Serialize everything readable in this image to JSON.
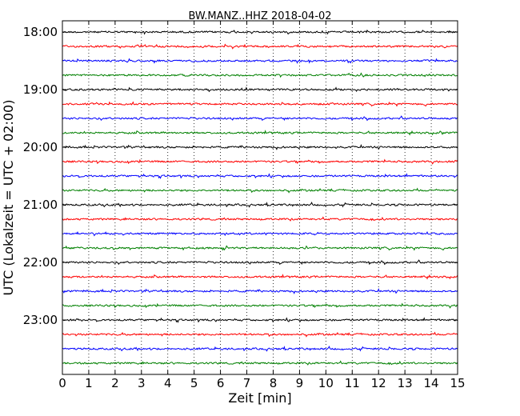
{
  "chart_data": {
    "type": "line",
    "title": "BW.MANZ..HHZ 2018-04-02",
    "xlabel": "Zeit  [min]",
    "ylabel": "UTC (Lokalzeit = UTC + 02:00)",
    "xlim": [
      0,
      15
    ],
    "x_ticks": [
      "0",
      "1",
      "2",
      "3",
      "4",
      "5",
      "6",
      "7",
      "8",
      "9",
      "10",
      "11",
      "12",
      "13",
      "14",
      "15"
    ],
    "y_ticks": [
      "18:00",
      "19:00",
      "20:00",
      "21:00",
      "22:00",
      "23:00"
    ],
    "grid": "vertical dotted",
    "trace_start_time": "18:00",
    "trace_interval_minutes": 15,
    "trace_count": 24,
    "trace_colors": [
      "#000000",
      "#ff0000",
      "#0000ff",
      "#008000"
    ]
  }
}
